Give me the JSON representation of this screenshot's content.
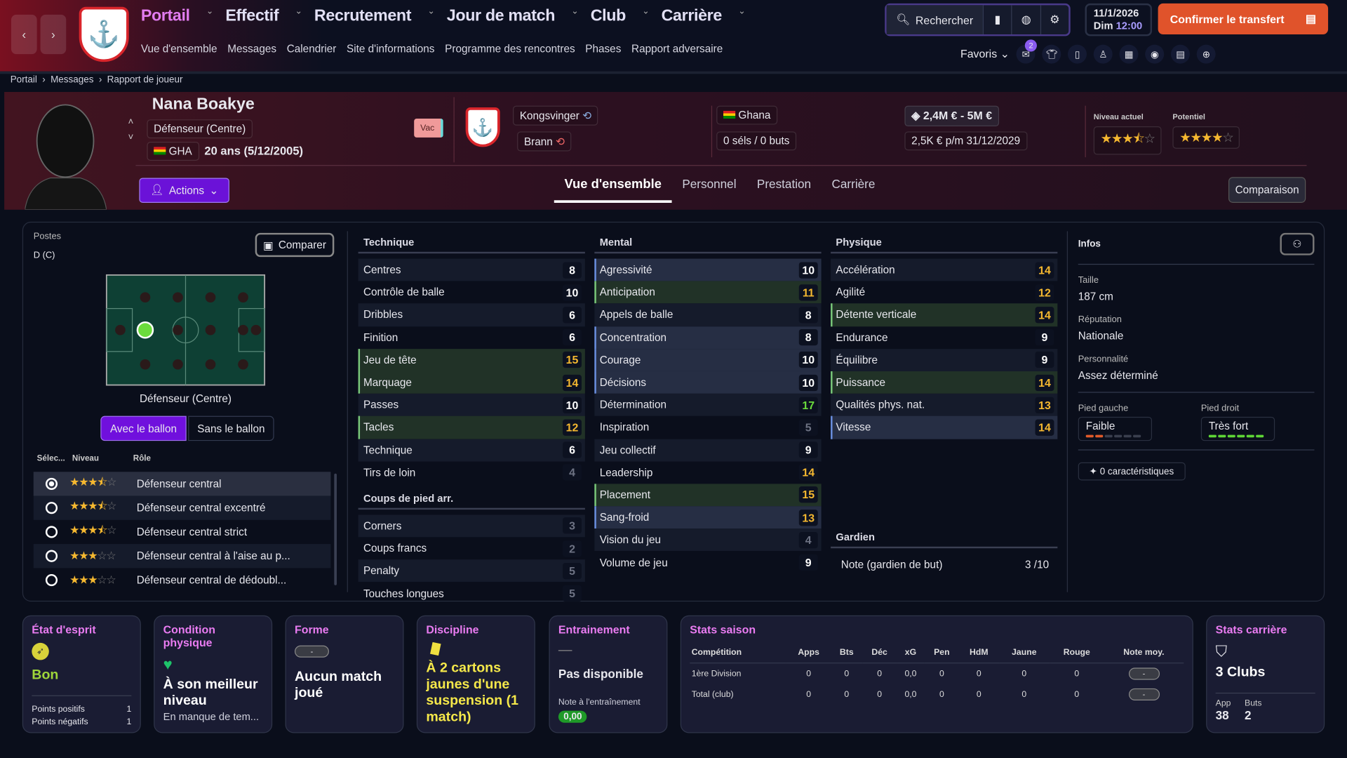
{
  "nav": {
    "main": [
      "Portail",
      "Effectif",
      "Recrutement",
      "Jour de match",
      "Club",
      "Carrière"
    ],
    "sub": [
      "Vue d'ensemble",
      "Messages",
      "Calendrier",
      "Site d'informations",
      "Programme des rencontres",
      "Phases",
      "Rapport adversaire"
    ],
    "search": "Rechercher",
    "date": "11/1/2026",
    "day": "Dim",
    "time": "12:00",
    "confirm": "Confirmer le transfert",
    "favorites": "Favoris",
    "notif_count": "2"
  },
  "breadcrumb": [
    "Portail",
    "Messages",
    "Rapport de joueur"
  ],
  "player": {
    "name": "Nana Boakye",
    "position": "Défenseur (Centre)",
    "nation_code": "GHA",
    "age": "20 ans (5/12/2005)",
    "status": "Vac",
    "club": "Kongsvinger",
    "loan_club": "Brann",
    "nation": "Ghana",
    "caps": "0 séls / 0 buts",
    "value": "2,4M € - 5M €",
    "wage": "2,5K € p/m",
    "contract_end": "31/12/2029",
    "current_label": "Niveau actuel",
    "potential_label": "Potentiel",
    "current_stars": 3.5,
    "potential_stars": 4,
    "actions": "Actions",
    "compare_btn": "Comparaison"
  },
  "tabs": [
    "Vue d'ensemble",
    "Personnel",
    "Prestation",
    "Carrière"
  ],
  "positions": {
    "label": "Postes",
    "value": "D (C)",
    "compare": "Comparer",
    "pitch_label": "Défenseur (Centre)",
    "toggle": [
      "Avec le ballon",
      "Sans le ballon"
    ],
    "cols": [
      "Sélec...",
      "Niveau",
      "Rôle"
    ],
    "roles": [
      {
        "name": "Défenseur central",
        "stars": 3.5,
        "selected": true
      },
      {
        "name": "Défenseur central excentré",
        "stars": 3.5
      },
      {
        "name": "Défenseur central strict",
        "stars": 3.5
      },
      {
        "name": "Défenseur central à l'aise au p...",
        "stars": 3
      },
      {
        "name": "Défenseur central de dédoubl...",
        "stars": 3
      }
    ]
  },
  "colors": {
    "high": "#f5b830",
    "elite": "#6bdc3c",
    "low": "#6e7384",
    "normal": "#ffffff",
    "accent": "#7a12e0",
    "confirm": "#e0532b"
  },
  "attributes": {
    "technique": {
      "title": "Technique",
      "items": [
        [
          "Centres",
          8,
          ""
        ],
        [
          "Contrôle de balle",
          10,
          ""
        ],
        [
          "Dribbles",
          6,
          ""
        ],
        [
          "Finition",
          6,
          ""
        ],
        [
          "Jeu de tête",
          15,
          "g"
        ],
        [
          "Marquage",
          14,
          "g"
        ],
        [
          "Passes",
          10,
          ""
        ],
        [
          "Tacles",
          12,
          "g"
        ],
        [
          "Technique",
          6,
          ""
        ],
        [
          "Tirs de loin",
          4,
          ""
        ]
      ]
    },
    "setpieces": {
      "title": "Coups de pied arr.",
      "items": [
        [
          "Corners",
          3,
          ""
        ],
        [
          "Coups francs",
          2,
          ""
        ],
        [
          "Penalty",
          5,
          ""
        ],
        [
          "Touches longues",
          5,
          ""
        ]
      ]
    },
    "mental": {
      "title": "Mental",
      "items": [
        [
          "Agressivité",
          10,
          "b"
        ],
        [
          "Anticipation",
          11,
          "g"
        ],
        [
          "Appels de balle",
          8,
          ""
        ],
        [
          "Concentration",
          8,
          "b"
        ],
        [
          "Courage",
          10,
          "b"
        ],
        [
          "Décisions",
          10,
          "b"
        ],
        [
          "Détermination",
          17,
          ""
        ],
        [
          "Inspiration",
          5,
          ""
        ],
        [
          "Jeu collectif",
          9,
          ""
        ],
        [
          "Leadership",
          14,
          ""
        ],
        [
          "Placement",
          15,
          "g"
        ],
        [
          "Sang-froid",
          13,
          "b"
        ],
        [
          "Vision du jeu",
          4,
          ""
        ],
        [
          "Volume de jeu",
          9,
          ""
        ]
      ]
    },
    "physique": {
      "title": "Physique",
      "items": [
        [
          "Accélération",
          14,
          ""
        ],
        [
          "Agilité",
          12,
          ""
        ],
        [
          "Détente verticale",
          14,
          "g"
        ],
        [
          "Endurance",
          9,
          ""
        ],
        [
          "Équilibre",
          9,
          ""
        ],
        [
          "Puissance",
          14,
          "g"
        ],
        [
          "Qualités phys. nat.",
          13,
          ""
        ],
        [
          "Vitesse",
          14,
          "b"
        ]
      ]
    },
    "goalkeeper": {
      "title": "Gardien",
      "label": "Note (gardien de but)",
      "value": "3 /10"
    }
  },
  "infos": {
    "title": "Infos",
    "height_label": "Taille",
    "height": "187 cm",
    "rep_label": "Réputation",
    "rep": "Nationale",
    "pers_label": "Personnalité",
    "pers": "Assez déterminé",
    "left_label": "Pied gauche",
    "left": "Faible",
    "left_level": 2,
    "right_label": "Pied droit",
    "right": "Très fort",
    "right_level": 6,
    "traits": "0 caractéristiques"
  },
  "cards": {
    "morale": {
      "title": "État d'esprit",
      "value": "Bon",
      "pos_label": "Points positifs",
      "pos": "1",
      "neg_label": "Points négatifs",
      "neg": "1"
    },
    "fitness": {
      "title": "Condition physique",
      "value": "À son meilleur niveau",
      "sub": "En manque de tem..."
    },
    "form": {
      "title": "Forme",
      "badge": "-",
      "value": "Aucun match joué"
    },
    "discipline": {
      "title": "Discipline",
      "value": "À 2 cartons jaunes d'une suspension (1 match)"
    },
    "training": {
      "title": "Entrainement",
      "dash": "—",
      "value": "Pas disponible",
      "rating_label": "Note à l'entraînement",
      "rating": "0,00"
    },
    "season": {
      "title": "Stats saison",
      "cols": [
        "Compétition",
        "Apps",
        "Bts",
        "Déc",
        "xG",
        "Pen",
        "HdM",
        "Jaune",
        "Rouge",
        "Note moy."
      ],
      "rows": [
        [
          "1ère Division",
          "0",
          "0",
          "0",
          "0,0",
          "0",
          "0",
          "0",
          "0",
          "-"
        ],
        [
          "Total (club)",
          "0",
          "0",
          "0",
          "0,0",
          "0",
          "0",
          "0",
          "0",
          "-"
        ]
      ]
    },
    "career": {
      "title": "Stats carrière",
      "value": "3 Clubs",
      "app_label": "App",
      "app": "38",
      "goals_label": "Buts",
      "goals": "2"
    }
  }
}
